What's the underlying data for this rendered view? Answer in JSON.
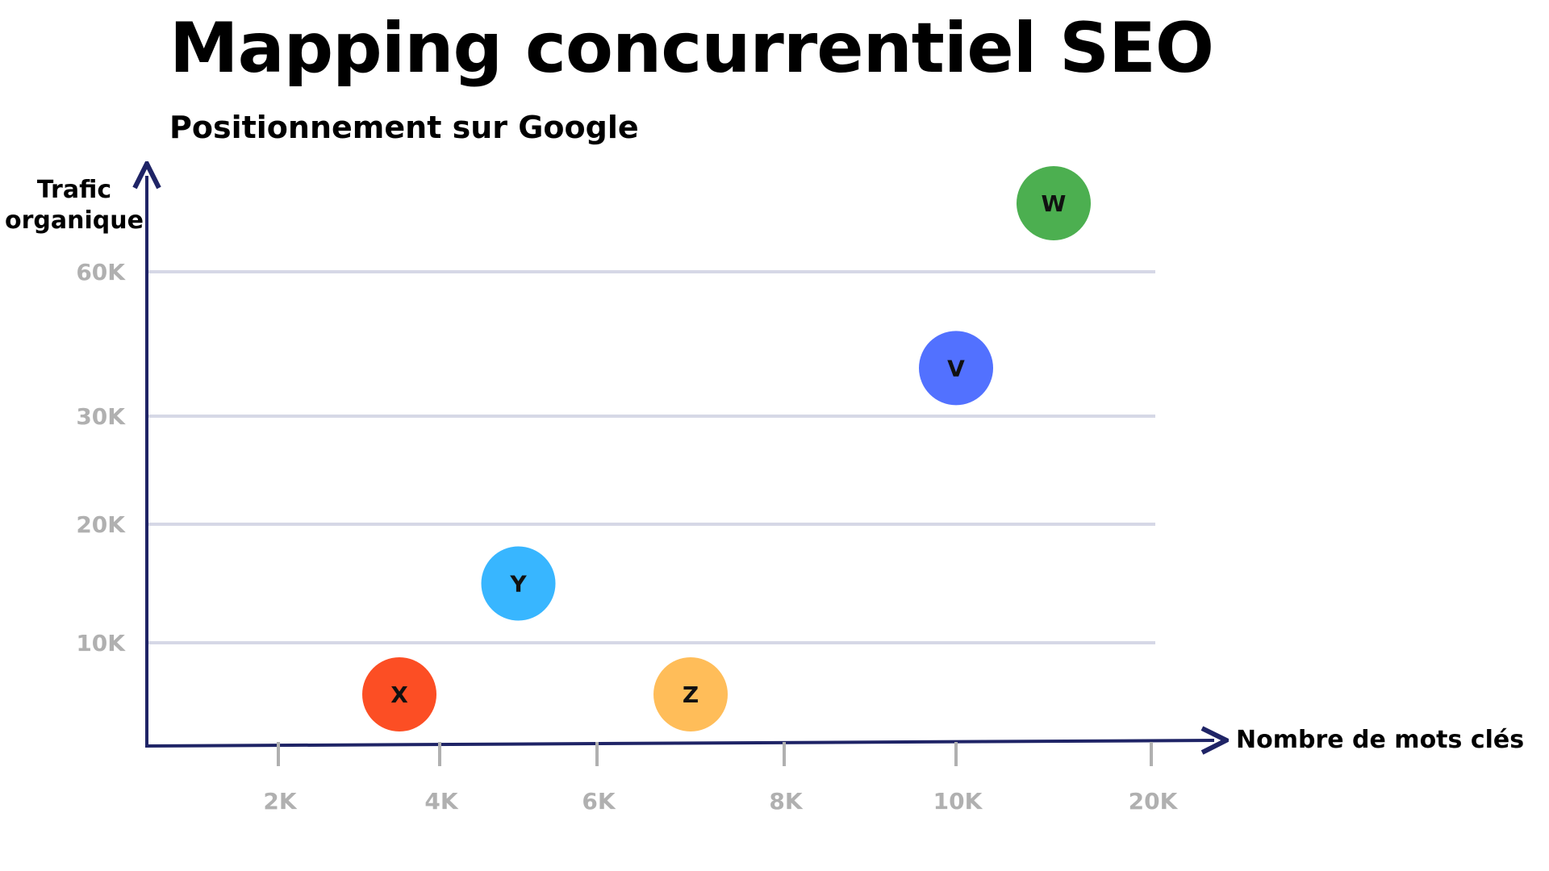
{
  "chart_data": {
    "type": "scatter",
    "title": "Mapping concurrentiel SEO",
    "subtitle": "Positionnement sur Google",
    "xlabel": "Nombre de mots clés",
    "ylabel": [
      "Trafic",
      "organique"
    ],
    "x_ticks": [
      "2K",
      "4K",
      "6K",
      "8K",
      "10K",
      "20K"
    ],
    "y_ticks": [
      "10K",
      "20K",
      "30K",
      "60K"
    ],
    "grid": true,
    "points": [
      {
        "label": "X",
        "x": "3.5K",
        "y": "5K",
        "color": "#fc4e24"
      },
      {
        "label": "Y",
        "x": "5K",
        "y": "15K",
        "color": "#38b6ff"
      },
      {
        "label": "Z",
        "x": "7K",
        "y": "5K",
        "color": "#ffbd59"
      },
      {
        "label": "V",
        "x": "10K",
        "y": "40K",
        "color": "#5271ff"
      },
      {
        "label": "W",
        "x": "15K",
        "y": "75K",
        "color": "#4caf50"
      }
    ],
    "axis_color": "#1f2466",
    "grid_color": "#d6d8e6",
    "tick_color": "#b0b0b0"
  }
}
